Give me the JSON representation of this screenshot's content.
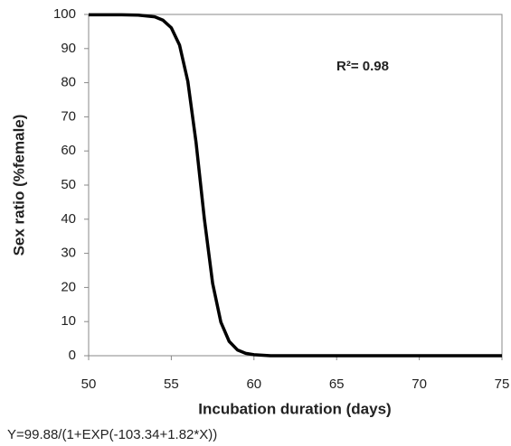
{
  "chart_data": {
    "type": "line",
    "y_label": "Sex ratio (%female)",
    "x_label": "Incubation duration (days)",
    "annotation": "R²= 0.98",
    "equation": "Y=99.88/(1+EXP(-103.34+1.82*X))",
    "x": [
      50,
      52,
      53,
      54,
      54.5,
      55,
      55.5,
      56,
      56.5,
      57,
      57.5,
      58,
      58.5,
      59,
      59.5,
      60,
      61,
      65,
      75
    ],
    "values": [
      99.9,
      99.9,
      99.8,
      99.3,
      98.3,
      96.1,
      91,
      80.4,
      62.4,
      40.1,
      21.2,
      9.8,
      4.2,
      1.7,
      0.7,
      0.3,
      0,
      0,
      0
    ],
    "color": "#000000",
    "xlim": [
      50,
      75
    ],
    "xticks": [
      50,
      55,
      60,
      65,
      70,
      75
    ],
    "ylim": [
      0,
      100
    ],
    "yticks": [
      0,
      10,
      20,
      30,
      40,
      50,
      60,
      70,
      80,
      90,
      100
    ]
  }
}
